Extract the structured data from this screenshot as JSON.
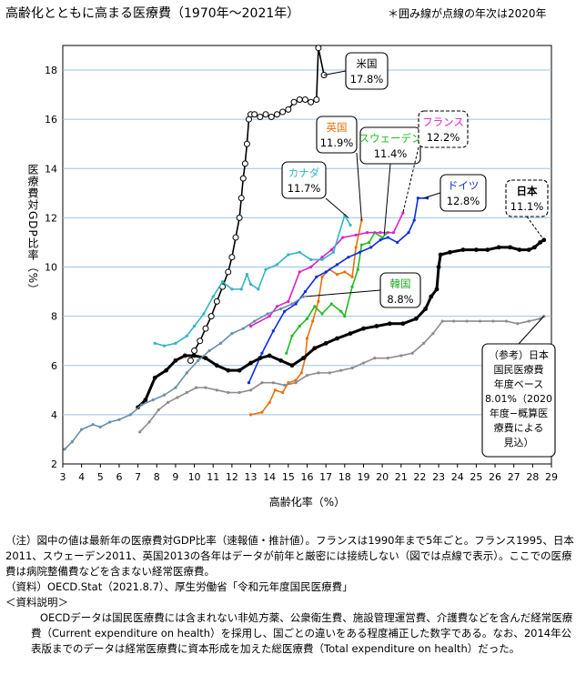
{
  "header": {
    "title": "高齢化とともに高まる医療費（1970年～2021年）",
    "note": "＊囲み線が点線の年次は2020年"
  },
  "chart_data": {
    "type": "line",
    "xlabel": "高齢化率（%）",
    "ylabel": "医療費対GDP比率（%）",
    "xlim": [
      3,
      29
    ],
    "ylim": [
      2,
      19
    ],
    "xticks": [
      "3",
      "4",
      "5",
      "6",
      "7",
      "8",
      "9",
      "10",
      "11",
      "12",
      "13",
      "14",
      "15",
      "16",
      "17",
      "18",
      "19",
      "20",
      "21",
      "22",
      "23",
      "24",
      "25",
      "26",
      "27",
      "28",
      "29"
    ],
    "yticks": [
      "2",
      "4",
      "6",
      "8",
      "10",
      "12",
      "14",
      "16",
      "18"
    ],
    "grid": true,
    "series": [
      {
        "name": "米国",
        "color": "#000000",
        "marker": "circle-open",
        "value_label": "17.8%",
        "points": [
          [
            9.8,
            6.2
          ],
          [
            10.0,
            6.6
          ],
          [
            10.3,
            7.0
          ],
          [
            10.6,
            7.5
          ],
          [
            10.9,
            8.0
          ],
          [
            11.2,
            8.6
          ],
          [
            11.5,
            9.2
          ],
          [
            11.8,
            9.8
          ],
          [
            12.0,
            10.4
          ],
          [
            12.2,
            11.2
          ],
          [
            12.4,
            12.0
          ],
          [
            12.5,
            12.8
          ],
          [
            12.6,
            13.6
          ],
          [
            12.7,
            14.2
          ],
          [
            12.8,
            15.0
          ],
          [
            12.9,
            16.0
          ],
          [
            13.0,
            16.2
          ],
          [
            13.2,
            16.2
          ],
          [
            13.5,
            16.1
          ],
          [
            13.8,
            16.2
          ],
          [
            14.1,
            16.1
          ],
          [
            14.4,
            16.2
          ],
          [
            14.7,
            16.3
          ],
          [
            15.0,
            16.4
          ],
          [
            15.3,
            16.7
          ],
          [
            15.6,
            16.8
          ],
          [
            15.9,
            16.8
          ],
          [
            16.2,
            16.7
          ],
          [
            16.5,
            16.8
          ],
          [
            16.6,
            18.9
          ],
          [
            16.9,
            17.8
          ]
        ]
      },
      {
        "name": "英国",
        "color": "#E8710A",
        "marker": "dot",
        "value_label": "11.9%",
        "points": [
          [
            13.0,
            4.0
          ],
          [
            13.6,
            4.1
          ],
          [
            14.0,
            4.5
          ],
          [
            14.3,
            5.0
          ],
          [
            14.7,
            4.9
          ],
          [
            15.0,
            5.3
          ],
          [
            15.4,
            5.4
          ],
          [
            15.7,
            5.7
          ],
          [
            15.9,
            6.3
          ],
          [
            16.0,
            7.1
          ],
          [
            16.3,
            7.8
          ],
          [
            16.6,
            8.6
          ],
          [
            16.8,
            9.6
          ],
          [
            17.2,
            9.9
          ],
          [
            17.6,
            9.7
          ],
          [
            18.0,
            9.8
          ],
          [
            18.4,
            9.6
          ],
          [
            18.6,
            10.8
          ],
          [
            18.9,
            11.9
          ]
        ]
      },
      {
        "name": "スウェーデン",
        "color": "#22BB22",
        "marker": "dot",
        "value_label": "11.4%",
        "points": [
          [
            14.9,
            6.5
          ],
          [
            15.2,
            7.2
          ],
          [
            15.6,
            7.6
          ],
          [
            16.0,
            7.9
          ],
          [
            16.4,
            8.4
          ],
          [
            16.8,
            8.1
          ],
          [
            17.3,
            8.5
          ],
          [
            17.8,
            8.2
          ],
          [
            18.0,
            8.0
          ],
          [
            18.4,
            9.2
          ],
          [
            18.7,
            9.9
          ],
          [
            18.9,
            10.9
          ],
          [
            19.3,
            11.0
          ],
          [
            19.6,
            11.4
          ],
          [
            20.0,
            11.2
          ],
          [
            20.3,
            11.4
          ]
        ]
      },
      {
        "name": "フランス",
        "color": "#E020C8",
        "marker": "dot",
        "value_label": "12.2%",
        "points": [
          [
            13.0,
            7.6
          ],
          [
            14.0,
            8.0
          ],
          [
            14.4,
            8.4
          ],
          [
            15.0,
            8.6
          ],
          [
            15.6,
            9.8
          ],
          [
            16.2,
            10.0
          ],
          [
            16.8,
            10.4
          ],
          [
            17.3,
            10.7
          ],
          [
            17.9,
            11.2
          ],
          [
            18.6,
            11.3
          ],
          [
            19.2,
            11.4
          ],
          [
            19.9,
            11.4
          ],
          [
            20.6,
            11.4
          ],
          [
            21.1,
            12.2
          ]
        ]
      },
      {
        "name": "カナダ",
        "color": "#33B4C4",
        "marker": "dot",
        "value_label": "11.7%",
        "points": [
          [
            7.9,
            6.9
          ],
          [
            8.4,
            6.8
          ],
          [
            9.0,
            6.9
          ],
          [
            9.6,
            7.2
          ],
          [
            10.0,
            7.6
          ],
          [
            10.5,
            8.1
          ],
          [
            11.0,
            8.8
          ],
          [
            11.5,
            9.4
          ],
          [
            12.0,
            9.1
          ],
          [
            12.5,
            9.1
          ],
          [
            12.8,
            9.7
          ],
          [
            13.0,
            9.3
          ],
          [
            13.4,
            9.1
          ],
          [
            13.8,
            9.9
          ],
          [
            14.4,
            10.1
          ],
          [
            15.0,
            10.5
          ],
          [
            15.6,
            10.6
          ],
          [
            16.2,
            10.3
          ],
          [
            16.8,
            10.3
          ],
          [
            17.4,
            10.6
          ],
          [
            18.0,
            12.1
          ],
          [
            18.3,
            11.7
          ]
        ]
      },
      {
        "name": "ドイツ",
        "color": "#0A2CE8",
        "marker": "dot",
        "value_label": "12.8%",
        "points": [
          [
            12.9,
            5.3
          ],
          [
            13.6,
            6.5
          ],
          [
            14.2,
            7.4
          ],
          [
            14.8,
            8.2
          ],
          [
            15.4,
            8.5
          ],
          [
            15.9,
            9.0
          ],
          [
            16.5,
            9.6
          ],
          [
            17.0,
            9.8
          ],
          [
            17.6,
            10.1
          ],
          [
            18.2,
            10.4
          ],
          [
            18.8,
            10.6
          ],
          [
            19.4,
            10.8
          ],
          [
            19.9,
            11.1
          ],
          [
            20.3,
            11.2
          ],
          [
            20.8,
            11.0
          ],
          [
            21.4,
            11.4
          ],
          [
            21.7,
            11.9
          ],
          [
            21.9,
            12.8
          ],
          [
            22.4,
            12.8
          ]
        ]
      },
      {
        "name": "日本",
        "color": "#000000",
        "marker": "dot",
        "value_label": "11.1%",
        "points": [
          [
            7.0,
            4.3
          ],
          [
            7.4,
            4.6
          ],
          [
            7.9,
            5.5
          ],
          [
            8.5,
            5.8
          ],
          [
            9.0,
            6.2
          ],
          [
            9.5,
            6.4
          ],
          [
            10.0,
            6.4
          ],
          [
            10.6,
            6.3
          ],
          [
            11.2,
            6.0
          ],
          [
            11.8,
            5.8
          ],
          [
            12.4,
            5.8
          ],
          [
            13.0,
            6.1
          ],
          [
            13.5,
            6.3
          ],
          [
            14.0,
            6.4
          ],
          [
            14.6,
            6.2
          ],
          [
            15.2,
            6.0
          ],
          [
            15.8,
            6.3
          ],
          [
            16.4,
            6.7
          ],
          [
            17.0,
            6.9
          ],
          [
            17.6,
            7.1
          ],
          [
            18.3,
            7.3
          ],
          [
            19.0,
            7.5
          ],
          [
            19.7,
            7.6
          ],
          [
            20.4,
            7.7
          ],
          [
            21.1,
            7.7
          ],
          [
            21.8,
            7.9
          ],
          [
            22.3,
            8.3
          ],
          [
            22.6,
            8.8
          ],
          [
            22.9,
            9.1
          ],
          [
            23.0,
            10.0
          ],
          [
            23.1,
            10.5
          ],
          [
            23.6,
            10.6
          ],
          [
            24.3,
            10.7
          ],
          [
            25.0,
            10.7
          ],
          [
            25.6,
            10.7
          ],
          [
            26.2,
            10.8
          ],
          [
            26.8,
            10.8
          ],
          [
            27.3,
            10.7
          ],
          [
            27.8,
            10.7
          ],
          [
            28.1,
            10.8
          ],
          [
            28.4,
            11.0
          ],
          [
            28.6,
            11.1
          ]
        ]
      },
      {
        "name": "韓国",
        "color": "#6A8FA8",
        "marker": "dot",
        "value_label": "8.8%",
        "points": [
          [
            3.1,
            2.6
          ],
          [
            3.5,
            2.9
          ],
          [
            4.0,
            3.4
          ],
          [
            4.6,
            3.6
          ],
          [
            5.0,
            3.5
          ],
          [
            5.5,
            3.7
          ],
          [
            6.0,
            3.8
          ],
          [
            6.6,
            4.0
          ],
          [
            7.2,
            4.4
          ],
          [
            7.8,
            4.6
          ],
          [
            8.4,
            4.8
          ],
          [
            9.0,
            5.1
          ],
          [
            9.6,
            5.7
          ],
          [
            10.2,
            6.2
          ],
          [
            10.8,
            6.6
          ],
          [
            11.4,
            6.9
          ],
          [
            12.0,
            7.3
          ],
          [
            12.6,
            7.5
          ],
          [
            13.2,
            7.8
          ],
          [
            13.9,
            8.1
          ],
          [
            14.6,
            8.3
          ],
          [
            15.2,
            8.5
          ],
          [
            15.8,
            8.8
          ]
        ]
      },
      {
        "name": "（参考）日本国民医療費年度ベース",
        "color": "#8C8C8C",
        "marker": "dot",
        "value_label": "8.01%",
        "points": [
          [
            7.1,
            3.3
          ],
          [
            7.6,
            3.7
          ],
          [
            8.1,
            4.2
          ],
          [
            8.6,
            4.5
          ],
          [
            9.1,
            4.7
          ],
          [
            9.6,
            4.9
          ],
          [
            10.1,
            5.1
          ],
          [
            10.6,
            5.1
          ],
          [
            11.2,
            5.0
          ],
          [
            11.8,
            4.9
          ],
          [
            12.4,
            4.9
          ],
          [
            13.0,
            5.0
          ],
          [
            13.6,
            5.3
          ],
          [
            14.2,
            5.3
          ],
          [
            14.8,
            5.2
          ],
          [
            15.4,
            5.3
          ],
          [
            16.0,
            5.6
          ],
          [
            16.6,
            5.7
          ],
          [
            17.2,
            5.7
          ],
          [
            17.8,
            5.8
          ],
          [
            18.4,
            5.9
          ],
          [
            19.0,
            6.1
          ],
          [
            19.6,
            6.3
          ],
          [
            20.3,
            6.3
          ],
          [
            21.0,
            6.4
          ],
          [
            21.6,
            6.5
          ],
          [
            22.2,
            6.9
          ],
          [
            22.7,
            7.3
          ],
          [
            23.2,
            7.8
          ],
          [
            23.8,
            7.8
          ],
          [
            24.5,
            7.8
          ],
          [
            25.2,
            7.8
          ],
          [
            25.9,
            7.8
          ],
          [
            26.6,
            7.8
          ],
          [
            27.2,
            7.7
          ],
          [
            27.8,
            7.8
          ],
          [
            28.4,
            7.9
          ],
          [
            28.6,
            8.0
          ]
        ]
      }
    ],
    "annotations": [
      {
        "series": "米国",
        "text": [
          "米国",
          "17.8%"
        ],
        "dashed": false,
        "color": "#000000"
      },
      {
        "series": "英国",
        "text": [
          "英国",
          "11.9%"
        ],
        "dashed": false,
        "color": "#E8710A"
      },
      {
        "series": "スウェーデン",
        "text": [
          "スウェーデン",
          "11.4%"
        ],
        "dashed": false,
        "color": "#22BB22"
      },
      {
        "series": "フランス",
        "text": [
          "フランス",
          "12.2%"
        ],
        "dashed": true,
        "color": "#E020C8"
      },
      {
        "series": "カナダ",
        "text": [
          "カナダ",
          "11.7%"
        ],
        "dashed": false,
        "color": "#33B4C4"
      },
      {
        "series": "ドイツ",
        "text": [
          "ドイツ",
          "12.8%"
        ],
        "dashed": false,
        "color": "#0A2CE8"
      },
      {
        "series": "日本",
        "text": [
          "日本",
          "11.1%"
        ],
        "dashed": true,
        "color": "#000000"
      },
      {
        "series": "韓国",
        "text": [
          "韓国",
          "8.8%"
        ],
        "dashed": false,
        "color": "#22AA22"
      },
      {
        "series": "（参考）日本国民医療費年度ベース",
        "text": [
          "（参考）日本",
          "国民医療費",
          "年度ベース",
          "8.01%（2020",
          "年度−概算医",
          "療費による",
          "見込）"
        ],
        "dashed": false,
        "color": "#000000"
      }
    ]
  },
  "notes": {
    "note1": "（注）図中の値は最新年の医療費対GDP比率（速報値・推計値）。フランスは1990年まで5年ごと。フランス1995、日本2011、スウェーデン2011、英国2013の各年はデータが前年と厳密には接続しない（図では点線で表示）。ここでの医療費は病院整備費などを含まない経常医療費。",
    "source": "（資料）OECD.Stat（2021.8.7）、厚生労働省「令和元年度国民医療費」",
    "heading": "＜資料説明＞",
    "body": "OECDデータは国民医療費には含まれない非処方薬、公衆衛生費、施設管理運営費、介護費などを含んだ経常医療費（Current expenditure on health）を採用し、国ごとの違いをある程度補正した数字である。なお、2014年公表版までのデータは経常医療費に資本形成を加えた総医療費（Total expenditure on health）だった。"
  }
}
